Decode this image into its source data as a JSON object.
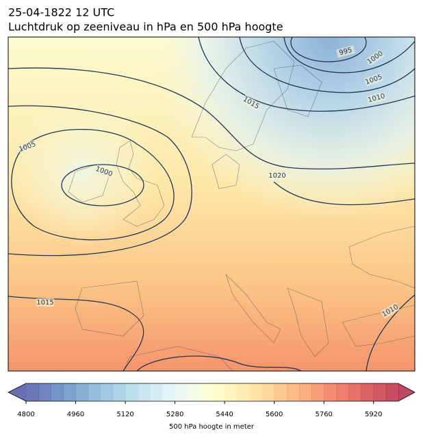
{
  "title": "25-04-1822 12 UTC",
  "subtitle": "Luchtdruk op zeeniveau in hPa en 500 hPa hoogte",
  "contour_labels": [
    "995",
    "1000",
    "1005",
    "1010",
    "1015",
    "1005",
    "1000",
    "1020",
    "1015",
    "1010"
  ],
  "colorbar": {
    "label": "500 hPa hoogte in meter",
    "lim": [
      4800,
      6000
    ],
    "step": 40,
    "ticks": [
      4800,
      4960,
      5120,
      5280,
      5440,
      5600,
      5760,
      5920
    ],
    "cmap": [
      "#313695",
      "#4575b4",
      "#74add1",
      "#abd9e9",
      "#e0f3f8",
      "#ffffbf",
      "#fee090",
      "#fdae61",
      "#f46d43",
      "#d73027",
      "#a50026"
    ]
  }
}
